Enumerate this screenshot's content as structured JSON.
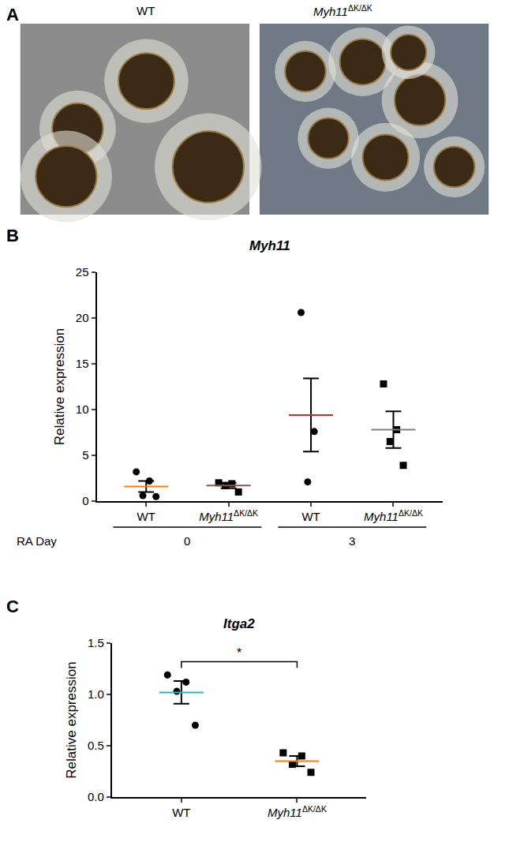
{
  "image_panel": {
    "panel": "A",
    "captions": [
      "WT",
      "Myh11ΔK/ΔK"
    ]
  },
  "chart_data": [
    {
      "type": "scatter",
      "panel": "B",
      "title": "Myh11",
      "y_label": "Relative expression",
      "x_label": "RA Day",
      "categories": [
        "0",
        "3"
      ],
      "series": [
        {
          "name": "WT",
          "marker": "circle",
          "color": "#000000",
          "values": [
            [
              3.2,
              2.2,
              0.6,
              0.5
            ],
            [
              20.6,
              7.6,
              2.1
            ]
          ],
          "mean": [
            1.6,
            9.4
          ],
          "sem": [
            0.6,
            4.0
          ]
        },
        {
          "name": "Myh11ΔK/ΔK",
          "marker": "square",
          "color": "#000000",
          "values": [
            [
              2.0,
              1.9,
              1.7,
              1.0
            ],
            [
              12.8,
              7.8,
              6.5,
              3.9
            ]
          ],
          "mean": [
            1.7,
            7.8
          ],
          "sem": [
            0.3,
            2.0
          ]
        }
      ],
      "ylim": [
        0,
        25
      ],
      "yticks": [
        0,
        5,
        10,
        15,
        20,
        25
      ],
      "grid": false
    },
    {
      "type": "scatter",
      "panel": "C",
      "title": "Itga2",
      "y_label": "Relative expression",
      "series": [
        {
          "name": "WT",
          "marker": "circle",
          "color": "#000000",
          "values": [
            1.19,
            1.12,
            1.03,
            0.7
          ],
          "mean": 1.02,
          "sem": 0.11
        },
        {
          "name": "Myh11ΔK/ΔK",
          "marker": "square",
          "color": "#000000",
          "values": [
            0.43,
            0.4,
            0.32,
            0.24
          ],
          "mean": 0.35,
          "sem": 0.05
        }
      ],
      "annotations": [
        {
          "text": "*",
          "from": 0,
          "to": 1
        }
      ],
      "ylim": [
        0,
        1.5
      ],
      "yticks": [
        {
          "value": 0,
          "label": "0.0"
        },
        {
          "value": 0.5,
          "label": "0.5"
        },
        {
          "value": 1,
          "label": "1.0"
        },
        {
          "value": 1.5,
          "label": "1.5"
        }
      ],
      "grid": false
    }
  ]
}
